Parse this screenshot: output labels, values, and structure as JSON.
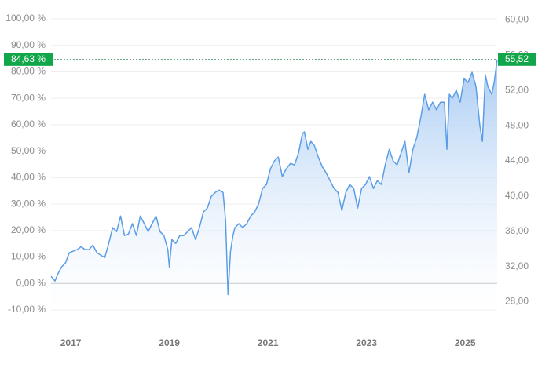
{
  "chart_data": {
    "type": "line",
    "x": [
      2016.6,
      2016.68,
      2016.73,
      2016.81,
      2016.89,
      2016.97,
      2017.05,
      2017.13,
      2017.21,
      2017.29,
      2017.37,
      2017.45,
      2017.53,
      2017.61,
      2017.69,
      2017.77,
      2017.85,
      2017.93,
      2018.01,
      2018.09,
      2018.17,
      2018.25,
      2018.33,
      2018.41,
      2018.49,
      2018.57,
      2018.65,
      2018.73,
      2018.81,
      2018.89,
      2018.97,
      2019.0,
      2019.05,
      2019.13,
      2019.21,
      2019.29,
      2019.37,
      2019.45,
      2019.53,
      2019.61,
      2019.69,
      2019.77,
      2019.85,
      2019.93,
      2020.01,
      2020.09,
      2020.14,
      2020.19,
      2020.24,
      2020.29,
      2020.33,
      2020.41,
      2020.49,
      2020.57,
      2020.65,
      2020.73,
      2020.81,
      2020.89,
      2020.97,
      2021.05,
      2021.13,
      2021.21,
      2021.29,
      2021.37,
      2021.46,
      2021.54,
      2021.62,
      2021.7,
      2021.74,
      2021.81,
      2021.87,
      2021.94,
      2022.02,
      2022.1,
      2022.18,
      2022.26,
      2022.34,
      2022.42,
      2022.5,
      2022.58,
      2022.66,
      2022.74,
      2022.82,
      2022.9,
      2022.98,
      2023.06,
      2023.14,
      2023.22,
      2023.3,
      2023.38,
      2023.46,
      2023.54,
      2023.62,
      2023.7,
      2023.78,
      2023.86,
      2023.94,
      2024.02,
      2024.1,
      2024.18,
      2024.26,
      2024.34,
      2024.42,
      2024.5,
      2024.58,
      2024.63,
      2024.68,
      2024.74,
      2024.82,
      2024.9,
      2024.98,
      2025.06,
      2025.14,
      2025.22,
      2025.3,
      2025.35,
      2025.41,
      2025.46,
      2025.54,
      2025.59,
      2025.65
    ],
    "series": [
      {
        "color": "#5b9ee6",
        "values": [
          2.7,
          0.9,
          3.3,
          6.2,
          7.7,
          11.6,
          12.2,
          12.8,
          13.9,
          12.8,
          12.8,
          14.5,
          11.6,
          10.7,
          9.8,
          15.1,
          21.1,
          19.6,
          25.5,
          18.1,
          18.7,
          22.6,
          18.1,
          25.5,
          22.6,
          19.6,
          22.6,
          25.5,
          19.6,
          18.1,
          12.8,
          6.2,
          16.6,
          15.1,
          18.1,
          18.1,
          19.6,
          21.1,
          16.6,
          21.1,
          27.0,
          28.5,
          32.9,
          34.4,
          35.3,
          34.4,
          24.0,
          -4.2,
          12.2,
          18.1,
          21.1,
          22.6,
          21.1,
          22.6,
          25.5,
          27.0,
          30.0,
          35.9,
          37.4,
          43.3,
          46.3,
          47.8,
          40.4,
          43.3,
          45.4,
          44.8,
          49.3,
          56.7,
          57.3,
          50.7,
          53.7,
          52.2,
          47.8,
          44.2,
          41.8,
          38.9,
          35.9,
          34.4,
          27.6,
          34.4,
          37.4,
          35.9,
          28.5,
          35.9,
          37.4,
          40.4,
          35.9,
          38.9,
          37.4,
          44.8,
          50.7,
          46.3,
          44.8,
          49.3,
          53.7,
          41.8,
          50.7,
          55.2,
          62.6,
          71.5,
          65.6,
          68.5,
          65.6,
          68.5,
          68.5,
          50.7,
          71.5,
          70.0,
          73.0,
          68.5,
          77.4,
          76.0,
          79.8,
          74.5,
          59.6,
          53.7,
          78.9,
          74.5,
          71.5,
          76.0,
          84.63
        ]
      }
    ],
    "xlim": [
      2016.6,
      2025.65
    ],
    "xticks": [
      2017,
      2019,
      2021,
      2023,
      2025
    ],
    "ylim": [
      -10,
      100
    ],
    "yticks": [
      {
        "value": -10,
        "label": "-10,00 %"
      },
      {
        "value": 0,
        "label": "0,00 %"
      },
      {
        "value": 10,
        "label": "10,00 %"
      },
      {
        "value": 20,
        "label": "20,00 %"
      },
      {
        "value": 30,
        "label": "30,00 %"
      },
      {
        "value": 40,
        "label": "40,00 %"
      },
      {
        "value": 50,
        "label": "50,00 %"
      },
      {
        "value": 60,
        "label": "60,00 %"
      },
      {
        "value": 70,
        "label": "70,00 %"
      },
      {
        "value": 80,
        "label": "80,00 %"
      },
      {
        "value": 90,
        "label": "90,00 %"
      },
      {
        "value": 100,
        "label": "100,00 %"
      }
    ],
    "y2lim": [
      27.06,
      60.14
    ],
    "y2ticks": [
      {
        "value": 28,
        "label": "28,00"
      },
      {
        "value": 32,
        "label": "32,00"
      },
      {
        "value": 36,
        "label": "36,00"
      },
      {
        "value": 40,
        "label": "40,00"
      },
      {
        "value": 44,
        "label": "44,00"
      },
      {
        "value": 48,
        "label": "48,00"
      },
      {
        "value": 52,
        "label": "52,00"
      },
      {
        "value": 56,
        "label": "56,00"
      },
      {
        "value": 60,
        "label": "60,00"
      }
    ],
    "last": {
      "value": 84.63,
      "label": "84,63 %"
    },
    "last_y2": {
      "value": 55.52,
      "label": "55,52"
    },
    "badge_color": "#12a64a",
    "grid": true
  }
}
